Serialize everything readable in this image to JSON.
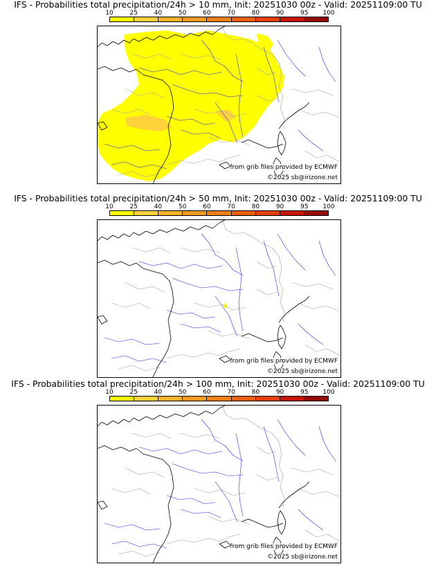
{
  "colorbar": {
    "ticks": [
      "10",
      "25",
      "40",
      "50",
      "60",
      "70",
      "80",
      "90",
      "95",
      "100"
    ],
    "colors": [
      "#ffff00",
      "#ffd23c",
      "#f7b22a",
      "#f59a20",
      "#f28017",
      "#ee600f",
      "#e63e0d",
      "#c8140a",
      "#960a08",
      "#5a0404"
    ]
  },
  "map_colors": {
    "coast": "#000000",
    "rivers": "#2a2ae0",
    "borders": "#a0a0a0"
  },
  "panels": [
    {
      "title": "IFS - Probabilities total precipitation/24h > 10 mm, Init: 20251030 00z - Valid: 20251109:00 TU",
      "threshold_mm": 10,
      "credit_source": "from grib files provided by ECMWF",
      "credit_copyright": "©2025 sb@irizone.net"
    },
    {
      "title": "IFS - Probabilities total precipitation/24h > 50 mm, Init: 20251030 00z - Valid: 20251109:00 TU",
      "threshold_mm": 50,
      "credit_source": "from grib files provided by ECMWF",
      "credit_copyright": "©2025 sb@irizone.net"
    },
    {
      "title": "IFS - Probabilities total precipitation/24h > 100 mm, Init: 20251030 00z - Valid: 20251109:00 TU",
      "threshold_mm": 100,
      "credit_source": "from grib files provided by ECMWF",
      "credit_copyright": "©2025 sb@irizone.net"
    }
  ]
}
